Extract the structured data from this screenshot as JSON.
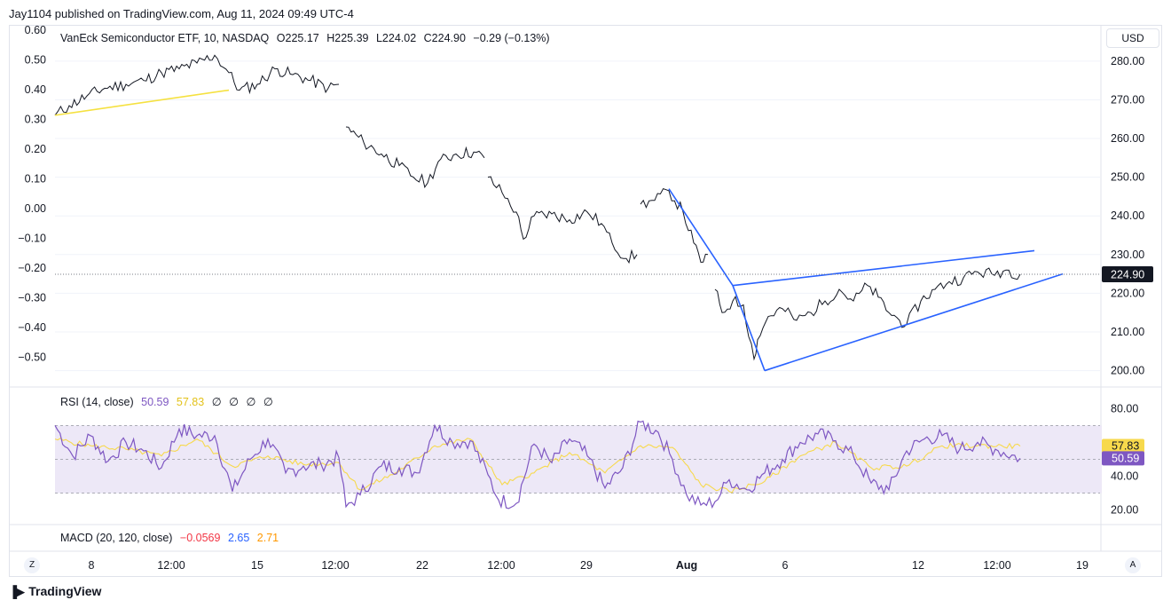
{
  "header": {
    "published": "Jay1104 published on TradingView.com, Aug 11, 2024 09:49 UTC-4"
  },
  "legend": {
    "symbol": "VanEck Semiconductor ETF, 10, NASDAQ",
    "open": "O225.17",
    "high": "H225.39",
    "low": "L224.02",
    "close": "C224.90",
    "change": "−0.29 (−0.13%)"
  },
  "currency": "USD",
  "rsi_legend": {
    "label": "RSI (14, close)",
    "rsi": "50.59",
    "ma": "57.83",
    "extras": [
      "∅",
      "∅",
      "∅",
      "∅"
    ]
  },
  "macd_legend": {
    "label": "MACD (20, 120, close)",
    "macd": "−0.0569",
    "signal": "2.65",
    "hist": "2.71"
  },
  "time_buttons": {
    "left": "Z",
    "right": "A"
  },
  "footer": {
    "brand": "TradingView",
    "logo": "tradingview-logo-icon"
  },
  "colors": {
    "price": "#131722",
    "trendline_yellow": "#f5e140",
    "wedge_blue": "#2962ff",
    "rsi": "#7e57c2",
    "rsi_ma": "#f7d94c",
    "rsi_band": "#ede8f7",
    "macd": "#f23645",
    "signal": "#2962ff",
    "hist": "#ff9800",
    "grid": "#f0f3fa"
  },
  "chart_data": [
    {
      "type": "line",
      "series": [
        {
          "name": "VanEck Semiconductor ETF, 10, NASDAQ",
          "values": [
            {
              "x": 0.0,
              "y": 266
            },
            {
              "x": 0.2,
              "y": 268.5
            },
            {
              "x": 0.45,
              "y": 271
            },
            {
              "x": 0.7,
              "y": 273
            },
            {
              "x": 1.0,
              "y": 274
            },
            {
              "x": 1.25,
              "y": 275
            },
            {
              "x": 1.5,
              "y": 277
            },
            {
              "x": 1.75,
              "y": 278
            },
            {
              "x": 2.0,
              "y": 279.5
            },
            {
              "x": 2.25,
              "y": 281.5
            },
            {
              "x": 2.45,
              "y": 277
            },
            {
              "x": 2.6,
              "y": 272.5
            },
            {
              "x": 2.85,
              "y": 274
            },
            {
              "x": 3.1,
              "y": 278
            },
            {
              "x": 3.35,
              "y": 276.5
            },
            {
              "x": 3.6,
              "y": 275
            },
            {
              "x": 3.85,
              "y": 273
            },
            {
              "x": 4.0,
              "y": 274
            },
            {
              "x": 4.1,
              "y": 263
            },
            {
              "x": 4.35,
              "y": 259
            },
            {
              "x": 4.6,
              "y": 256
            },
            {
              "x": 4.85,
              "y": 253
            },
            {
              "x": 5.05,
              "y": 250
            },
            {
              "x": 5.25,
              "y": 248.5
            },
            {
              "x": 5.4,
              "y": 254
            },
            {
              "x": 5.65,
              "y": 256
            },
            {
              "x": 5.9,
              "y": 256.5
            },
            {
              "x": 6.05,
              "y": 255
            },
            {
              "x": 6.1,
              "y": 250
            },
            {
              "x": 6.3,
              "y": 246
            },
            {
              "x": 6.5,
              "y": 241
            },
            {
              "x": 6.6,
              "y": 234
            },
            {
              "x": 6.75,
              "y": 240
            },
            {
              "x": 7.0,
              "y": 240.5
            },
            {
              "x": 7.25,
              "y": 239
            },
            {
              "x": 7.5,
              "y": 241
            },
            {
              "x": 7.7,
              "y": 238
            },
            {
              "x": 7.85,
              "y": 233
            },
            {
              "x": 8.05,
              "y": 229
            },
            {
              "x": 8.2,
              "y": 230
            },
            {
              "x": 8.25,
              "y": 243
            },
            {
              "x": 8.45,
              "y": 244
            },
            {
              "x": 8.65,
              "y": 246.5
            },
            {
              "x": 8.85,
              "y": 241
            },
            {
              "x": 9.0,
              "y": 233
            },
            {
              "x": 9.1,
              "y": 228
            },
            {
              "x": 9.2,
              "y": 230
            },
            {
              "x": 9.3,
              "y": 221
            },
            {
              "x": 9.4,
              "y": 215
            },
            {
              "x": 9.55,
              "y": 218
            },
            {
              "x": 9.7,
              "y": 217
            },
            {
              "x": 9.85,
              "y": 203
            },
            {
              "x": 9.9,
              "y": 208
            },
            {
              "x": 10.05,
              "y": 214
            },
            {
              "x": 10.25,
              "y": 216
            },
            {
              "x": 10.45,
              "y": 213
            },
            {
              "x": 10.65,
              "y": 215
            },
            {
              "x": 10.85,
              "y": 218
            },
            {
              "x": 11.05,
              "y": 221
            },
            {
              "x": 11.25,
              "y": 218
            },
            {
              "x": 11.45,
              "y": 222
            },
            {
              "x": 11.6,
              "y": 219
            },
            {
              "x": 11.75,
              "y": 215
            },
            {
              "x": 11.9,
              "y": 213
            },
            {
              "x": 12.0,
              "y": 212
            },
            {
              "x": 12.2,
              "y": 218
            },
            {
              "x": 12.4,
              "y": 221
            },
            {
              "x": 12.6,
              "y": 223
            },
            {
              "x": 12.8,
              "y": 224
            },
            {
              "x": 13.0,
              "y": 225.5
            },
            {
              "x": 13.2,
              "y": 225
            },
            {
              "x": 13.4,
              "y": 226
            },
            {
              "x": 13.6,
              "y": 224.9
            }
          ]
        }
      ],
      "trendlines": [
        {
          "name": "yellow",
          "points": [
            {
              "x": 0.0,
              "y": 266
            },
            {
              "x": 2.45,
              "y": 272.5
            }
          ]
        },
        {
          "name": "blue",
          "points": [
            {
              "x": 8.65,
              "y": 247
            },
            {
              "x": 9.55,
              "y": 222
            }
          ]
        },
        {
          "name": "blue",
          "points": [
            {
              "x": 9.55,
              "y": 222
            },
            {
              "x": 10.0,
              "y": 200
            }
          ]
        },
        {
          "name": "blue",
          "points": [
            {
              "x": 9.55,
              "y": 222
            },
            {
              "x": 13.8,
              "y": 231
            }
          ]
        },
        {
          "name": "blue",
          "points": [
            {
              "x": 10.0,
              "y": 200
            },
            {
              "x": 14.2,
              "y": 225
            }
          ]
        }
      ],
      "last_price": "224.90",
      "ylim": [
        196,
        288
      ],
      "yticks_right": [
        "280.00",
        "270.00",
        "260.00",
        "250.00",
        "240.00",
        "230.00",
        "220.00",
        "210.00",
        "200.00"
      ],
      "yticks_left": [
        "0.60",
        "0.50",
        "0.40",
        "0.30",
        "0.20",
        "0.10",
        "0.00",
        "−0.10",
        "−0.20",
        "−0.30",
        "−0.40",
        "−0.50"
      ],
      "xticks": [
        "8",
        "12:00",
        "15",
        "12:00",
        "22",
        "12:00",
        "29",
        "Aug",
        "6",
        "12",
        "12:00",
        "19"
      ]
    },
    {
      "type": "line",
      "title": "RSI (14, close)",
      "series": [
        {
          "name": "RSI",
          "values": [
            {
              "x": 0.0,
              "y": 70
            },
            {
              "x": 0.25,
              "y": 52
            },
            {
              "x": 0.5,
              "y": 64
            },
            {
              "x": 0.75,
              "y": 49
            },
            {
              "x": 1.0,
              "y": 60
            },
            {
              "x": 1.25,
              "y": 55
            },
            {
              "x": 1.5,
              "y": 45
            },
            {
              "x": 1.75,
              "y": 68
            },
            {
              "x": 2.0,
              "y": 64
            },
            {
              "x": 2.25,
              "y": 64
            },
            {
              "x": 2.5,
              "y": 31
            },
            {
              "x": 2.75,
              "y": 50
            },
            {
              "x": 3.0,
              "y": 62
            },
            {
              "x": 3.25,
              "y": 42
            },
            {
              "x": 3.5,
              "y": 46
            },
            {
              "x": 3.75,
              "y": 47
            },
            {
              "x": 4.0,
              "y": 51
            },
            {
              "x": 4.1,
              "y": 22
            },
            {
              "x": 4.3,
              "y": 29
            },
            {
              "x": 4.6,
              "y": 46
            },
            {
              "x": 4.85,
              "y": 45
            },
            {
              "x": 5.1,
              "y": 42
            },
            {
              "x": 5.35,
              "y": 70
            },
            {
              "x": 5.6,
              "y": 60
            },
            {
              "x": 5.85,
              "y": 61
            },
            {
              "x": 6.1,
              "y": 41
            },
            {
              "x": 6.25,
              "y": 26
            },
            {
              "x": 6.5,
              "y": 24
            },
            {
              "x": 6.75,
              "y": 59
            },
            {
              "x": 7.0,
              "y": 48
            },
            {
              "x": 7.25,
              "y": 62
            },
            {
              "x": 7.5,
              "y": 52
            },
            {
              "x": 7.75,
              "y": 33
            },
            {
              "x": 8.0,
              "y": 45
            },
            {
              "x": 8.25,
              "y": 72
            },
            {
              "x": 8.5,
              "y": 66
            },
            {
              "x": 8.7,
              "y": 50
            },
            {
              "x": 8.9,
              "y": 29
            },
            {
              "x": 9.1,
              "y": 23
            },
            {
              "x": 9.3,
              "y": 25
            },
            {
              "x": 9.5,
              "y": 38
            },
            {
              "x": 9.75,
              "y": 32
            },
            {
              "x": 10.0,
              "y": 42
            },
            {
              "x": 10.25,
              "y": 50
            },
            {
              "x": 10.5,
              "y": 60
            },
            {
              "x": 10.75,
              "y": 65
            },
            {
              "x": 11.0,
              "y": 61
            },
            {
              "x": 11.25,
              "y": 52
            },
            {
              "x": 11.5,
              "y": 36
            },
            {
              "x": 11.75,
              "y": 32
            },
            {
              "x": 12.0,
              "y": 55
            },
            {
              "x": 12.25,
              "y": 62
            },
            {
              "x": 12.5,
              "y": 64
            },
            {
              "x": 12.75,
              "y": 56
            },
            {
              "x": 13.0,
              "y": 60
            },
            {
              "x": 13.25,
              "y": 56
            },
            {
              "x": 13.6,
              "y": 50.59
            }
          ]
        },
        {
          "name": "RSI-based MA",
          "values": [
            {
              "x": 0.0,
              "y": 62
            },
            {
              "x": 0.5,
              "y": 58
            },
            {
              "x": 1.0,
              "y": 56
            },
            {
              "x": 1.5,
              "y": 52
            },
            {
              "x": 2.0,
              "y": 62
            },
            {
              "x": 2.5,
              "y": 46
            },
            {
              "x": 3.0,
              "y": 52
            },
            {
              "x": 3.5,
              "y": 47
            },
            {
              "x": 4.0,
              "y": 48
            },
            {
              "x": 4.3,
              "y": 32
            },
            {
              "x": 4.8,
              "y": 42
            },
            {
              "x": 5.35,
              "y": 58
            },
            {
              "x": 5.85,
              "y": 62
            },
            {
              "x": 6.3,
              "y": 35
            },
            {
              "x": 6.75,
              "y": 42
            },
            {
              "x": 7.25,
              "y": 54
            },
            {
              "x": 7.75,
              "y": 42
            },
            {
              "x": 8.25,
              "y": 58
            },
            {
              "x": 8.7,
              "y": 57
            },
            {
              "x": 9.1,
              "y": 35
            },
            {
              "x": 9.5,
              "y": 31
            },
            {
              "x": 10.0,
              "y": 37
            },
            {
              "x": 10.5,
              "y": 52
            },
            {
              "x": 11.0,
              "y": 60
            },
            {
              "x": 11.5,
              "y": 45
            },
            {
              "x": 12.0,
              "y": 46
            },
            {
              "x": 12.5,
              "y": 58
            },
            {
              "x": 13.0,
              "y": 58
            },
            {
              "x": 13.6,
              "y": 57.83
            }
          ]
        }
      ],
      "band": [
        30,
        70
      ],
      "midline": 50,
      "ylim": [
        12,
        88
      ],
      "yticks": [
        "80.00",
        "40.00",
        "20.00"
      ],
      "current": {
        "rsi": "50.59",
        "ma": "57.83"
      }
    },
    {
      "type": "line",
      "title": "MACD (20, 120, close)",
      "series": [
        {
          "name": "MACD",
          "values": []
        },
        {
          "name": "Signal",
          "values": []
        },
        {
          "name": "Histogram",
          "values": []
        }
      ]
    }
  ]
}
